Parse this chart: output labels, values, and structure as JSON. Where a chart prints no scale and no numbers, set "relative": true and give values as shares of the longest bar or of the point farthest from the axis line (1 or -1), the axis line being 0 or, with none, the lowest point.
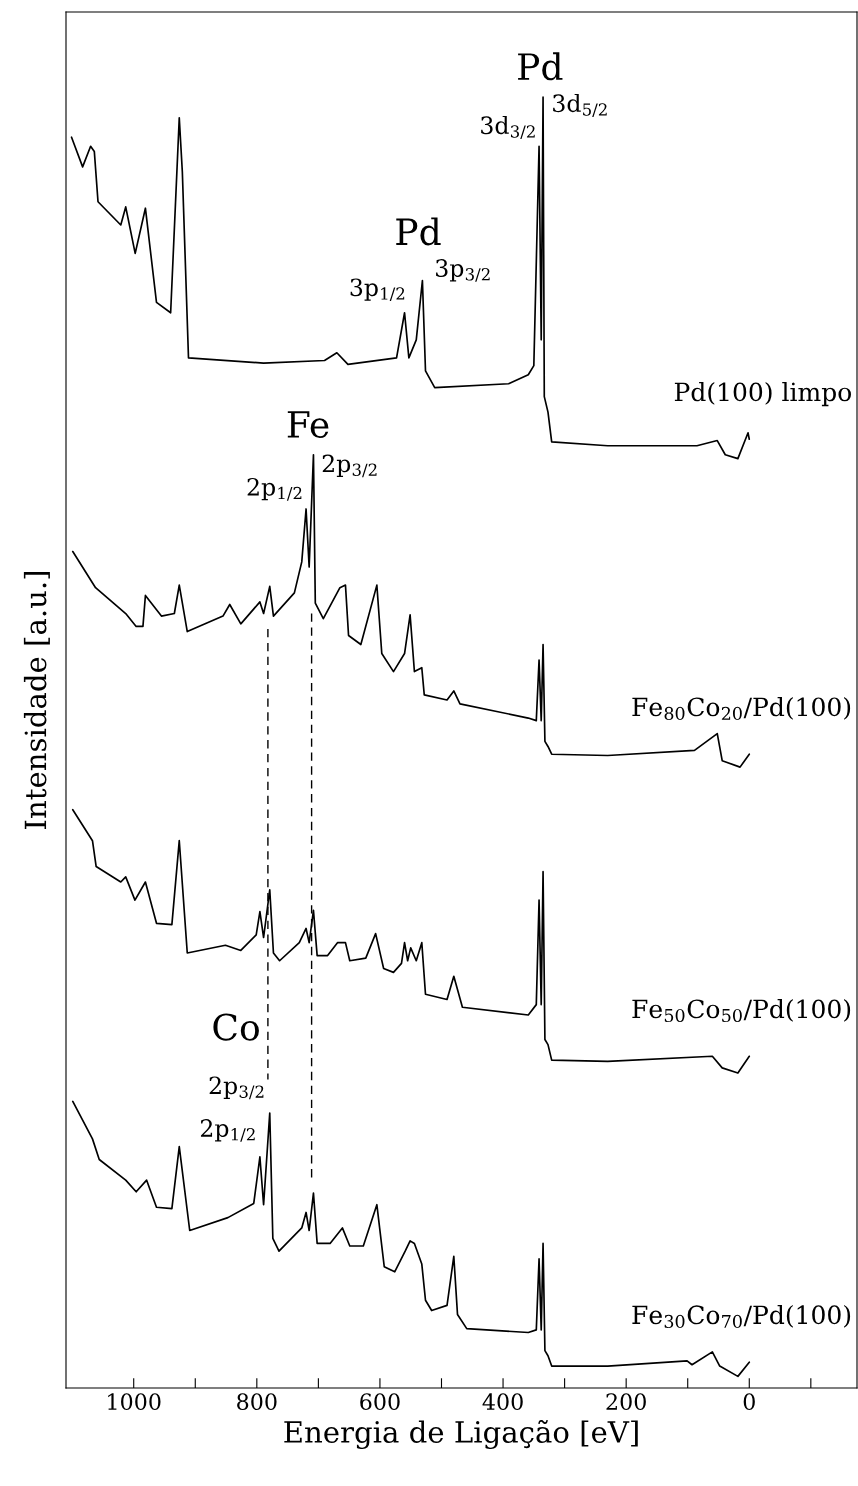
{
  "chart_data": {
    "type": "line",
    "relative": true,
    "xlabel": "Energia de Ligação [eV]",
    "ylabel": "Intensidade [a.u.]",
    "xlim": [
      1110,
      -175
    ],
    "xticks": [
      1000,
      {
        "value": 900,
        "label": null
      },
      800,
      {
        "value": 700,
        "label": null
      },
      600,
      {
        "value": 500,
        "label": null
      },
      400,
      {
        "value": 300,
        "label": null
      },
      200,
      {
        "value": 100,
        "label": null
      },
      0,
      {
        "value": -100,
        "label": null
      }
    ],
    "tick_labels": "x",
    "grid": false,
    "legend": false,
    "marker": "none",
    "series": [
      {
        "name": "Pd(100) limpo",
        "color": "#000000",
        "x": [
          1101,
          1083,
          1070,
          1064,
          1058,
          1021,
          1013,
          997.6,
          981,
          963,
          940,
          926,
          921,
          911,
          789,
          690,
          670,
          652,
          573,
          560,
          553,
          541,
          531,
          526,
          511,
          391,
          359,
          350,
          341.5,
          338,
          335,
          333,
          327,
          321,
          230,
          85,
          52,
          39,
          18.5,
          2,
          0
        ],
        "values": [
          0.969,
          0.946,
          0.962,
          0.958,
          0.919,
          0.901,
          0.915,
          0.879,
          0.914,
          0.841,
          0.833,
          0.984,
          0.942,
          0.798,
          0.794,
          0.796,
          0.802,
          0.793,
          0.798,
          0.833,
          0.798,
          0.812,
          0.858,
          0.788,
          0.775,
          0.778,
          0.785,
          0.792,
          0.962,
          0.812,
          1,
          0.768,
          0.756,
          0.733,
          0.73,
          0.73,
          0.734,
          0.723,
          0.72,
          0.74,
          0.735
        ]
      },
      {
        "name": "Fe$_{80}$Co$_{20}$/Pd(100)",
        "color": "#000000",
        "x": [
          1099,
          1062,
          1013,
          996,
          985,
          981,
          955,
          934,
          926,
          913,
          855,
          844,
          826,
          795,
          789,
          779,
          773,
          739,
          727,
          720,
          715,
          708,
          705,
          692,
          665,
          656,
          651,
          631,
          605,
          597,
          578,
          560,
          551,
          544,
          532,
          528,
          491,
          480,
          470,
          359,
          346,
          341.5,
          338,
          335,
          332,
          327,
          321,
          230,
          89,
          52,
          44,
          15,
          0
        ],
        "values": [
          0.648,
          0.62,
          0.6,
          0.59,
          0.59,
          0.614,
          0.598,
          0.6,
          0.622,
          0.586,
          0.598,
          0.607,
          0.592,
          0.609,
          0.6,
          0.621,
          0.598,
          0.616,
          0.64,
          0.681,
          0.636,
          0.723,
          0.608,
          0.596,
          0.62,
          0.622,
          0.583,
          0.576,
          0.622,
          0.569,
          0.555,
          0.569,
          0.599,
          0.555,
          0.558,
          0.537,
          0.533,
          0.54,
          0.53,
          0.519,
          0.517,
          0.564,
          0.517,
          0.576,
          0.501,
          0.497,
          0.491,
          0.49,
          0.494,
          0.507,
          0.486,
          0.481,
          0.491
        ]
      },
      {
        "name": "Fe$_{50}$Co$_{50}$/Pd(100)",
        "color": "#000000",
        "x": [
          1099,
          1067,
          1061,
          1021,
          1013,
          998,
          981,
          963,
          938,
          926,
          913,
          851,
          826,
          801,
          795,
          789,
          779,
          773,
          763,
          731,
          720,
          715,
          708,
          702,
          685,
          669,
          656,
          649,
          623,
          607,
          594,
          578,
          565,
          560,
          555,
          550,
          541,
          532,
          526,
          491,
          480,
          466,
          359,
          346,
          341.5,
          338,
          335,
          332,
          327,
          321,
          230,
          60,
          44,
          18.5,
          0
        ],
        "values": [
          0.448,
          0.424,
          0.404,
          0.392,
          0.396,
          0.378,
          0.392,
          0.36,
          0.359,
          0.424,
          0.337,
          0.343,
          0.339,
          0.351,
          0.369,
          0.349,
          0.386,
          0.337,
          0.331,
          0.345,
          0.356,
          0.345,
          0.37,
          0.335,
          0.335,
          0.345,
          0.345,
          0.331,
          0.333,
          0.352,
          0.325,
          0.322,
          0.329,
          0.345,
          0.331,
          0.341,
          0.331,
          0.345,
          0.305,
          0.301,
          0.319,
          0.295,
          0.289,
          0.297,
          0.378,
          0.297,
          0.4,
          0.27,
          0.266,
          0.254,
          0.253,
          0.257,
          0.248,
          0.244,
          0.257
        ]
      },
      {
        "name": "Fe$_{30}$Co$_{70}$/Pd(100)",
        "color": "#000000",
        "x": [
          1099,
          1067,
          1056,
          1013,
          996,
          979,
          963,
          938,
          926,
          909,
          847,
          805,
          795,
          789,
          779,
          774,
          764,
          727,
          720,
          715,
          708,
          702,
          681,
          661,
          649,
          627,
          605,
          593,
          576,
          559,
          551,
          544,
          532,
          526,
          516,
          491,
          480,
          474,
          459,
          359,
          346,
          341.5,
          338,
          335,
          332,
          327,
          321,
          230,
          101,
          93,
          60,
          48,
          18.5,
          0
        ],
        "values": [
          0.222,
          0.193,
          0.177,
          0.161,
          0.152,
          0.161,
          0.14,
          0.139,
          0.187,
          0.122,
          0.132,
          0.143,
          0.179,
          0.142,
          0.213,
          0.116,
          0.106,
          0.124,
          0.136,
          0.122,
          0.151,
          0.112,
          0.112,
          0.124,
          0.11,
          0.11,
          0.142,
          0.094,
          0.09,
          0.106,
          0.114,
          0.112,
          0.096,
          0.068,
          0.06,
          0.064,
          0.102,
          0.057,
          0.046,
          0.043,
          0.045,
          0.1,
          0.045,
          0.112,
          0.029,
          0.025,
          0.017,
          0.017,
          0.021,
          0.018,
          0.028,
          0.017,
          0.009,
          0.02
        ]
      },
      {
        "color": "#000000",
        "line_style": "dashed",
        "x": [
          782,
          782
        ],
        "values": [
          0.588,
          0.239
        ]
      },
      {
        "color": "#000000",
        "line_style": "dashed",
        "x": [
          711,
          711
        ],
        "values": [
          0.6,
          0.163
        ]
      }
    ],
    "annotations": [
      "Pd",
      "3d$_{3/2}$",
      "3d$_{5/2}$",
      "Pd",
      "3p$_{1/2}$",
      "3p$_{3/2}$",
      "Fe",
      "2p$_{1/2}$",
      "2p$_{3/2}$",
      "Co",
      "2p$_{3/2}$",
      "2p$_{1/2}$"
    ]
  }
}
